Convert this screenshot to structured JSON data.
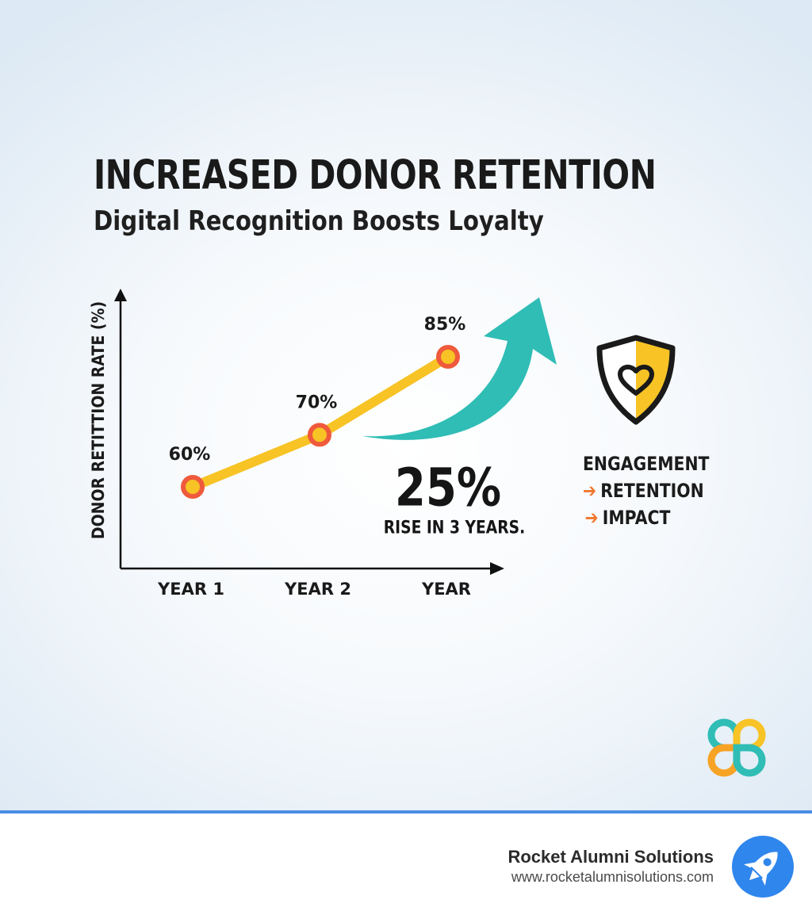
{
  "infographic": {
    "title": "INCREASED DONOR RETENTION",
    "subtitle": "Digital Recognition Boosts Loyalty"
  },
  "chart_data": {
    "type": "line",
    "categories": [
      "YEAR 1",
      "YEAR 2",
      "YEAR"
    ],
    "values": [
      60,
      70,
      85
    ],
    "data_labels": [
      "60%",
      "70%",
      "85%"
    ],
    "xlabel": "",
    "ylabel": "DONOR RETITTION RATE (%)",
    "ylim": [
      50,
      90
    ],
    "grid": false,
    "colors": {
      "line": "#f7c325",
      "marker_fill": "#f7c325",
      "marker_ring": "#ef5a3c",
      "trend_arrow": "#2fbdb5"
    }
  },
  "stat": {
    "value": "25%",
    "caption": "RISE IN 3 YEARS."
  },
  "flow": {
    "step1": "ENGAGEMENT",
    "step2": "RETENTION",
    "step3": "IMPACT",
    "arrow": "➔",
    "icon": "shield-heart-icon"
  },
  "footer": {
    "company": "Rocket Alumni Solutions",
    "url": "www.rocketalumnisolutions.com",
    "logo": "rocket-icon",
    "accent": "#4a8ee6"
  }
}
